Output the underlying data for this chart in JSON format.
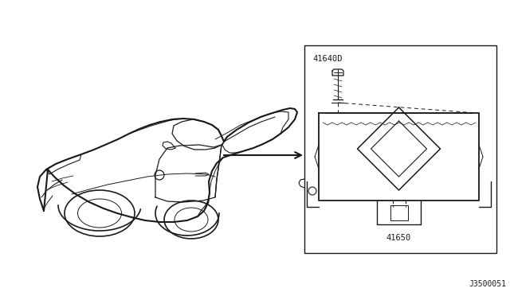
{
  "bg_color": "#ffffff",
  "line_color": "#1a1a1a",
  "diagram_ref": "J3500051",
  "part1_label": "41640D",
  "part2_label": "41650",
  "figsize": [
    6.4,
    3.72
  ],
  "dpi": 100
}
